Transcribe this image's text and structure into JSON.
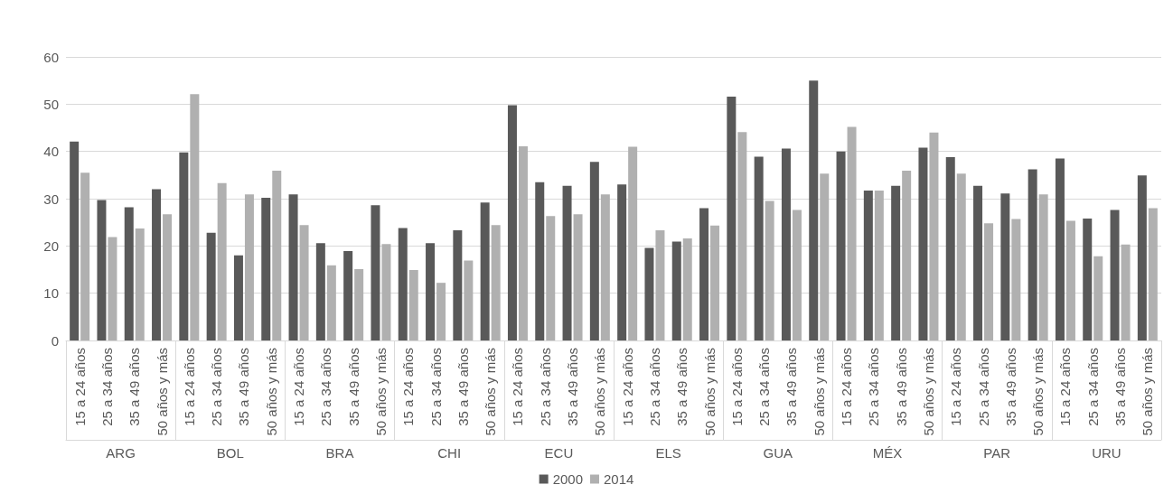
{
  "chart_data": {
    "type": "bar",
    "categories": [
      "15 a 24 años",
      "25 a 34 años",
      "35 a 49 años",
      "50 años y más",
      "15 a 24 años",
      "25 a 34 años",
      "35 a 49 años",
      "50 años y más",
      "15 a 24 años",
      "25 a 34 años",
      "35 a 49 años",
      "50 años y más",
      "15 a 24 años",
      "25 a 34 años",
      "35 a 49 años",
      "50 años y más",
      "15 a 24 años",
      "25 a 34 años",
      "35 a 49 años",
      "50 años y más",
      "15 a 24 años",
      "25 a 34 años",
      "35 a 49 años",
      "50 años y más",
      "15 a 24 años",
      "25 a 34 años",
      "35 a 49 años",
      "50 años y más",
      "15 a 24 años",
      "25 a 34 años",
      "35 a 49 años",
      "50 años y más",
      "15 a 24 años",
      "25 a 34 años",
      "35 a 49 años",
      "50 años y más",
      "15 a 24 años",
      "25 a 34 años",
      "35 a 49 años",
      "50 años y más"
    ],
    "annotations": [
      "ARG",
      "BOL",
      "BRA",
      "CHI",
      "ECU",
      "ELS",
      "GUA",
      "MÉX",
      "PAR",
      "URU"
    ],
    "series": [
      {
        "name": "2000",
        "color": "#595959",
        "values": [
          42.1,
          29.7,
          28.2,
          32.0,
          39.8,
          22.8,
          18.0,
          30.2,
          30.9,
          20.6,
          18.9,
          28.6,
          23.8,
          20.6,
          23.3,
          29.2,
          49.8,
          33.5,
          32.7,
          37.8,
          33.0,
          19.6,
          20.9,
          28.0,
          51.6,
          38.9,
          40.6,
          55.0,
          40.0,
          31.7,
          32.7,
          40.8,
          38.8,
          32.7,
          31.1,
          36.2,
          38.5,
          25.8,
          27.6,
          34.9
        ]
      },
      {
        "name": "2014",
        "color": "#b0b0b0",
        "values": [
          35.5,
          21.9,
          23.7,
          26.7,
          52.1,
          33.3,
          30.9,
          35.9,
          24.4,
          15.9,
          15.1,
          20.4,
          14.9,
          12.2,
          16.9,
          24.4,
          41.1,
          26.3,
          26.7,
          30.9,
          41.0,
          23.3,
          21.6,
          24.3,
          44.1,
          29.5,
          27.6,
          35.3,
          45.2,
          31.7,
          35.9,
          44.0,
          35.3,
          24.8,
          25.7,
          30.9,
          25.3,
          17.8,
          20.3,
          28.0
        ]
      }
    ],
    "ylim": [
      0,
      60
    ],
    "yticks": [
      0,
      10,
      20,
      30,
      40,
      50,
      60
    ],
    "grid": "y",
    "legend": "bottom"
  }
}
